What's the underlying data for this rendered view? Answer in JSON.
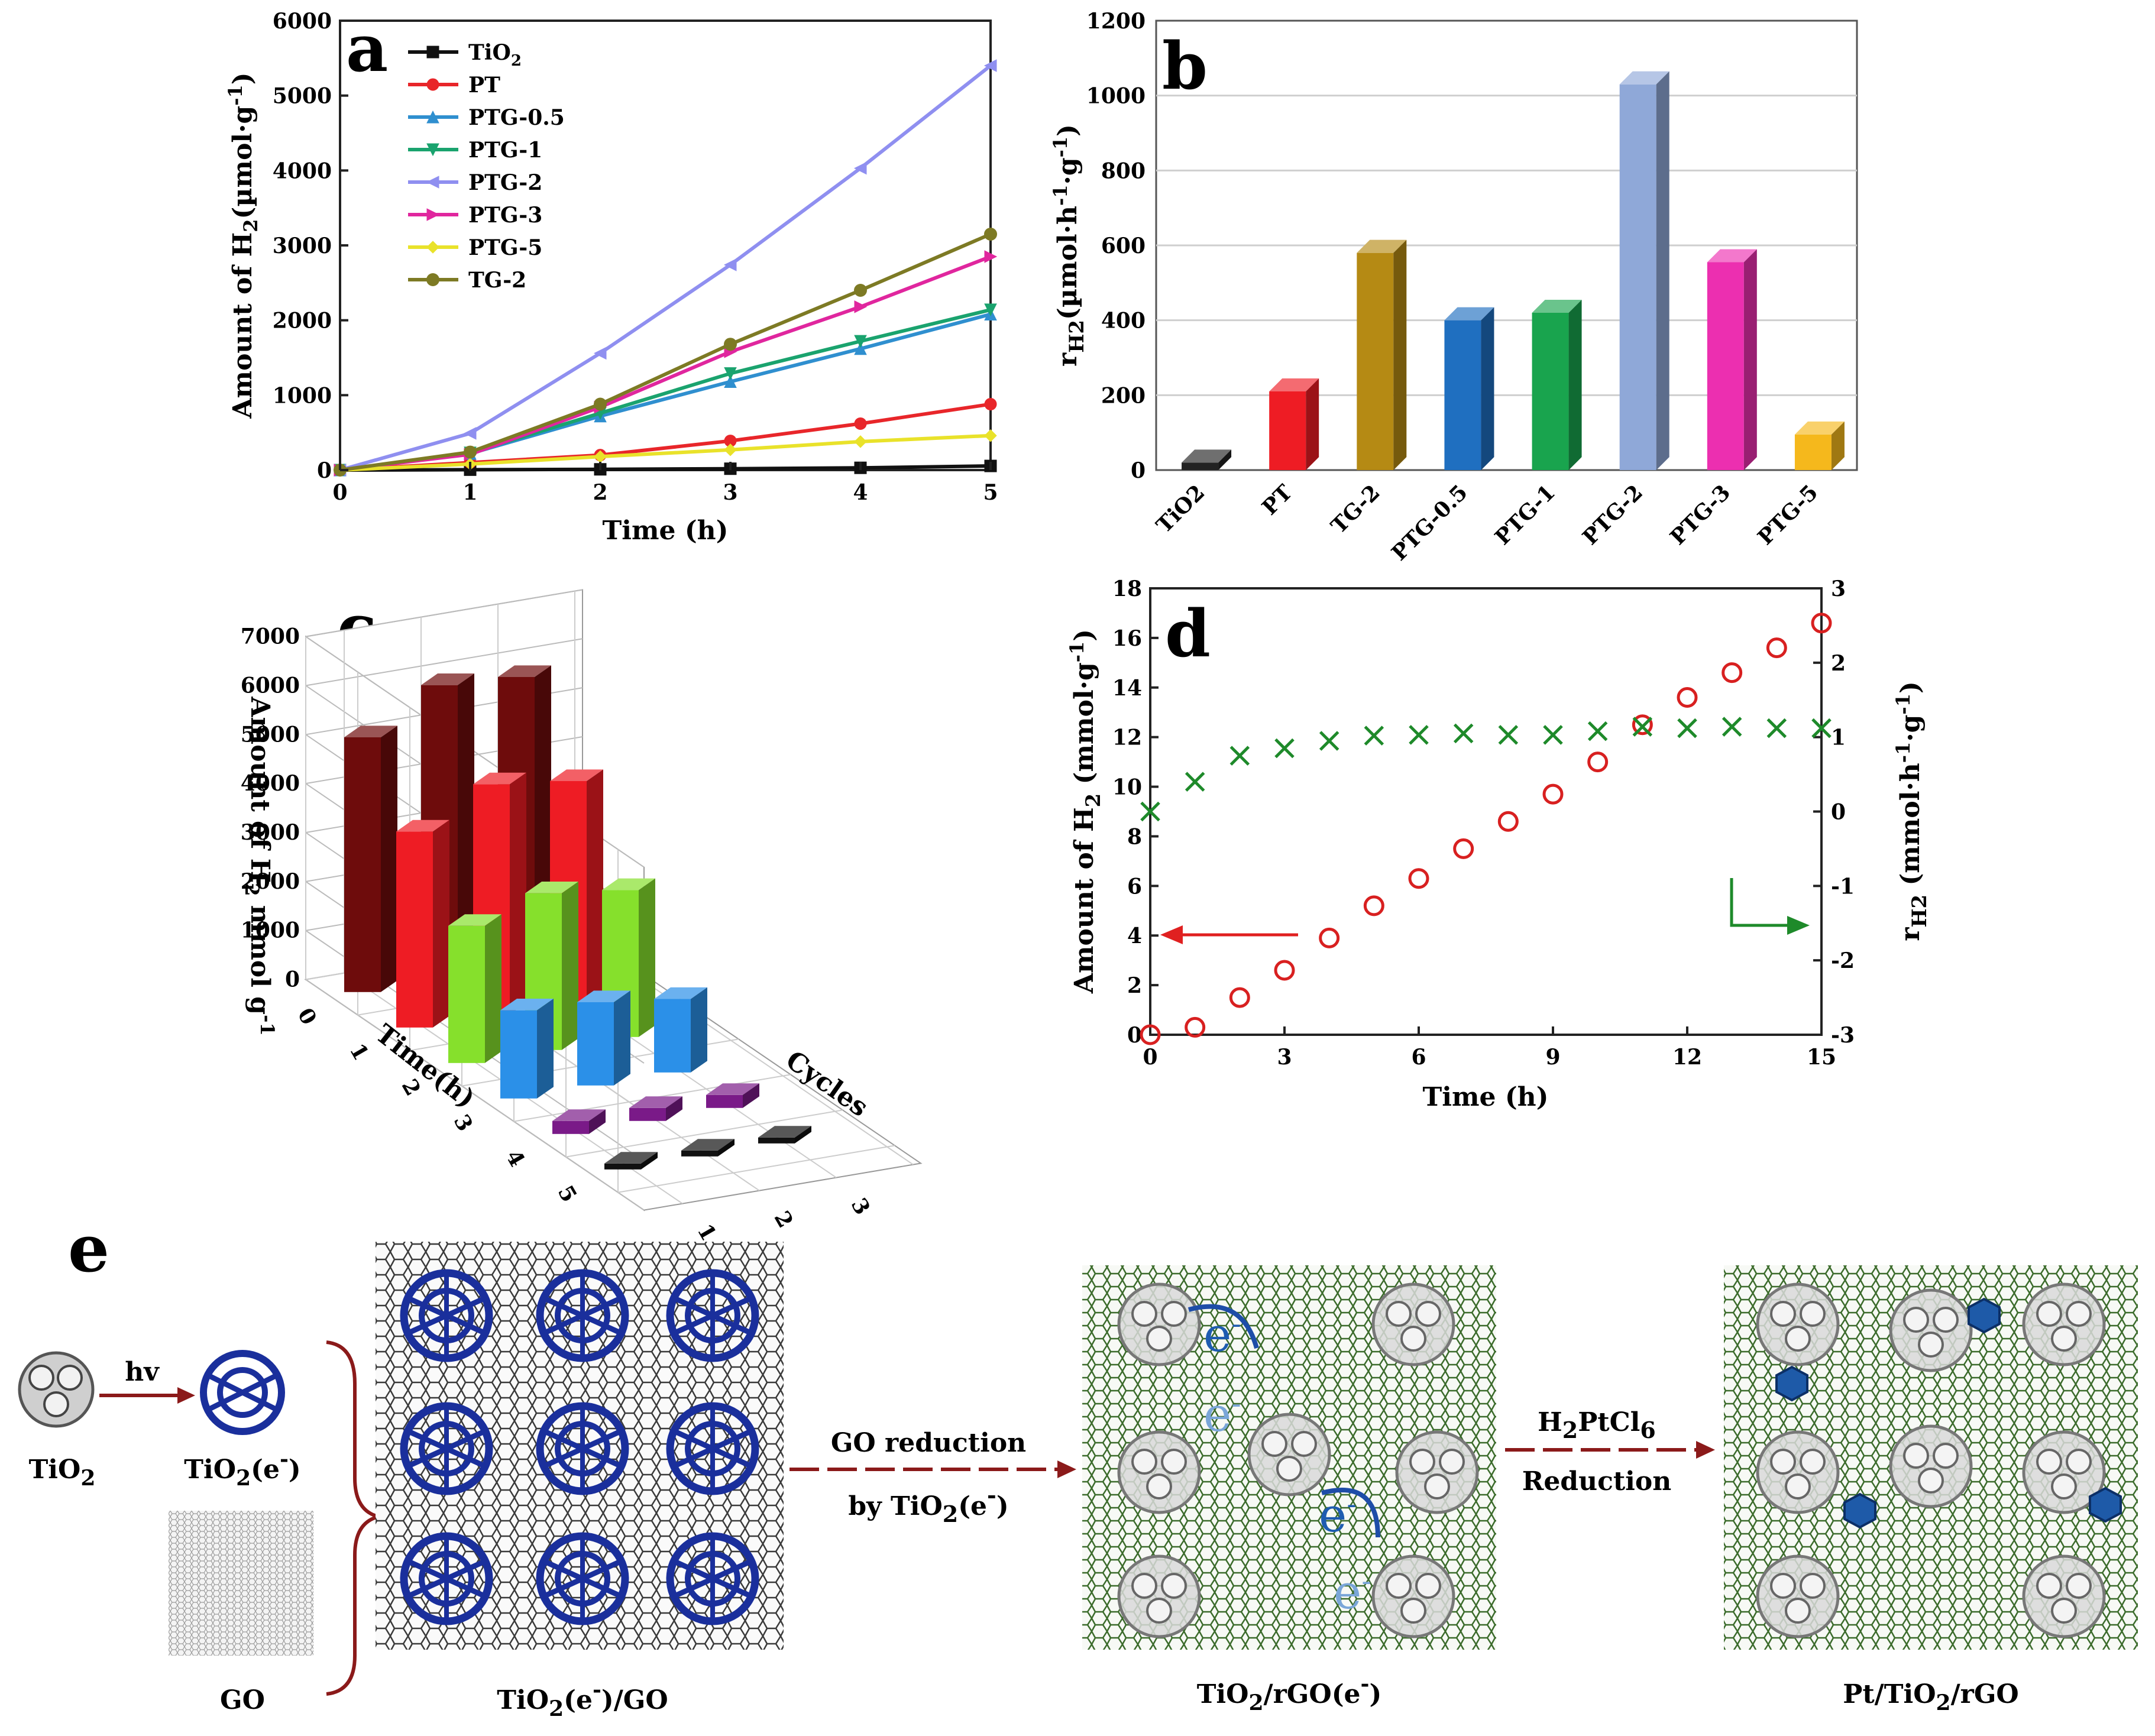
{
  "chart_data": [
    {
      "id": "a",
      "type": "line",
      "panel_label": "a",
      "xlabel": "Time (h)",
      "ylabel": "Amount of H2(µmol·g-1)",
      "ylabel_parts": {
        "pre": "Amount of H",
        "sub": "2",
        "post": "(µmol·g",
        "sup": "-1",
        "end": ")"
      },
      "xlim": [
        0,
        5
      ],
      "ylim": [
        0,
        6000
      ],
      "xticks": [
        "0",
        "1",
        "2",
        "3",
        "4",
        "5"
      ],
      "yticks": [
        "0",
        "1000",
        "2000",
        "3000",
        "4000",
        "5000",
        "6000"
      ],
      "legend_position": "top-left",
      "x": [
        0,
        1,
        2,
        3,
        4,
        5
      ],
      "series": [
        {
          "name": "TiO2",
          "name_base": "TiO",
          "name_sub": "2",
          "color": "#111111",
          "marker": "square",
          "values": [
            0,
            5,
            10,
            18,
            30,
            55
          ]
        },
        {
          "name": "PT",
          "name_base": "PT",
          "name_sub": "",
          "color": "#e8262a",
          "marker": "circle",
          "values": [
            0,
            100,
            200,
            390,
            620,
            880
          ]
        },
        {
          "name": "PTG-0.5",
          "name_base": "PTG-0.5",
          "name_sub": "",
          "color": "#2f8fcf",
          "marker": "triangle-up",
          "values": [
            0,
            220,
            720,
            1180,
            1620,
            2080
          ]
        },
        {
          "name": "PTG-1",
          "name_base": "PTG-1",
          "name_sub": "",
          "color": "#1aa36e",
          "marker": "triangle-down",
          "values": [
            0,
            230,
            760,
            1290,
            1720,
            2140
          ]
        },
        {
          "name": "PTG-2",
          "name_base": "PTG-2",
          "name_sub": "",
          "color": "#8f8ff0",
          "marker": "triangle-left",
          "values": [
            0,
            490,
            1560,
            2740,
            4030,
            5400
          ]
        },
        {
          "name": "PTG-3",
          "name_base": "PTG-3",
          "name_sub": "",
          "color": "#e0269e",
          "marker": "triangle-right",
          "values": [
            0,
            210,
            840,
            1580,
            2180,
            2850
          ]
        },
        {
          "name": "PTG-5",
          "name_base": "PTG-5",
          "name_sub": "",
          "color": "#e9e22a",
          "marker": "diamond",
          "values": [
            0,
            80,
            180,
            270,
            380,
            460
          ]
        },
        {
          "name": "TG-2",
          "name_base": "TG-2",
          "name_sub": "",
          "color": "#7d7a24",
          "marker": "hexagon",
          "values": [
            0,
            240,
            880,
            1680,
            2400,
            3150
          ]
        }
      ]
    },
    {
      "id": "b",
      "type": "bar",
      "panel_label": "b",
      "ylabel": "rH2(µmol·h-1·g-1)",
      "ylabel_parts": {
        "pre": "r",
        "sub": "H2",
        "post": "(µmol·h",
        "sup1": "-1",
        "mid": "·g",
        "sup2": "-1",
        "end": ")"
      },
      "ylim": [
        0,
        1200
      ],
      "yticks": [
        "0",
        "200",
        "400",
        "600",
        "800",
        "1000",
        "1200"
      ],
      "categories": [
        "TiO2",
        "PT",
        "TG-2",
        "PTG-0.5",
        "PTG-1",
        "PTG-2",
        "PTG-3",
        "PTG-5"
      ],
      "values": [
        20,
        210,
        580,
        400,
        420,
        1030,
        555,
        95
      ],
      "colors": [
        "#222222",
        "#ee1c24",
        "#b58a14",
        "#1f6fc0",
        "#19a44e",
        "#8fa8d8",
        "#ec2fb0",
        "#f5b81c"
      ]
    },
    {
      "id": "c",
      "type": "bar",
      "subtype": "3d-bar",
      "panel_label": "c",
      "zlabel": "Amount of H2 mmol g-1",
      "zlabel_parts": {
        "pre": "Amount of H",
        "sub": "2",
        "post": " mmol g",
        "sup": "-1"
      },
      "xlabel": "Time(h)",
      "ylabel": "Cycles",
      "zlim": [
        0,
        7000
      ],
      "zticks": [
        "0",
        "1000",
        "2000",
        "3000",
        "4000",
        "5000",
        "6000",
        "7000"
      ],
      "time_ticks": [
        "0",
        "1",
        "2",
        "3",
        "4",
        "5"
      ],
      "cycle_ticks": [
        "1",
        "2",
        "3"
      ],
      "time_levels": [
        5,
        4,
        3,
        2,
        1,
        0
      ],
      "level_colors": [
        "#6e0c0c",
        "#ee1c24",
        "#86e02c",
        "#2b90e8",
        "#7a1a88",
        "#111111"
      ],
      "cycles": [
        {
          "name": "1",
          "values": [
            5200,
            4000,
            2800,
            1800,
            180,
            0
          ]
        },
        {
          "name": "2",
          "values": [
            6000,
            4700,
            3200,
            1700,
            200,
            0
          ]
        },
        {
          "name": "3",
          "values": [
            5900,
            4500,
            3000,
            1500,
            150,
            0
          ]
        }
      ]
    },
    {
      "id": "d",
      "type": "scatter",
      "panel_label": "d",
      "xlabel": "Time (h)",
      "ylabel_left": "Amount of H2 (mmol·g-1)",
      "ylabel_left_parts": {
        "pre": "Amount of H",
        "sub": "2",
        "post": " (mmol·g",
        "sup": "-1",
        "end": ")"
      },
      "ylabel_right": "rH2 (mmol·h-1·g-1)",
      "ylabel_right_parts": {
        "pre": "r",
        "sub": "H2",
        "post": " (mmol·h",
        "sup1": "-1",
        "mid": "·g",
        "sup2": "-1",
        "end": ")"
      },
      "xlim": [
        0,
        15
      ],
      "ylim_left": [
        0,
        18
      ],
      "ylim_right": [
        -3,
        3
      ],
      "xticks": [
        "0",
        "3",
        "6",
        "9",
        "12",
        "15"
      ],
      "yticks_left": [
        "0",
        "2",
        "4",
        "6",
        "8",
        "10",
        "12",
        "14",
        "16",
        "18"
      ],
      "yticks_right": [
        "-3",
        "-2",
        "-1",
        "0",
        "1",
        "2",
        "3"
      ],
      "x": [
        0,
        1,
        2,
        3,
        4,
        5,
        6,
        7,
        8,
        9,
        10,
        11,
        12,
        13,
        14,
        15
      ],
      "series": [
        {
          "name": "Amount of H2",
          "axis": "left",
          "color": "#d82020",
          "marker": "circle-open",
          "values": [
            0,
            0.3,
            1.5,
            2.6,
            3.9,
            5.2,
            6.3,
            7.5,
            8.6,
            9.7,
            11.0,
            12.5,
            13.6,
            14.6,
            15.6,
            16.6
          ]
        },
        {
          "name": "rH2",
          "axis": "right",
          "color": "#1e8a2a",
          "marker": "x",
          "values": [
            0.0,
            0.4,
            0.75,
            0.85,
            0.95,
            1.02,
            1.03,
            1.05,
            1.03,
            1.03,
            1.08,
            1.14,
            1.12,
            1.14,
            1.12,
            1.12
          ]
        }
      ]
    }
  ],
  "schematic": {
    "panel_label": "e",
    "labels": {
      "tio2": {
        "base": "TiO",
        "sub": "2"
      },
      "hv": "hv",
      "tio2e": {
        "base": "TiO",
        "sub": "2",
        "post": "(e",
        "sup": "-",
        "end": ")"
      },
      "go": "GO",
      "tio2e_go": {
        "base": "TiO",
        "sub": "2",
        "post": "(e",
        "sup": "-",
        "end": ")/GO"
      },
      "step1_top": "GO reduction",
      "step1_bottom": {
        "pre": "by TiO",
        "sub": "2",
        "post": "(e",
        "sup": "-",
        "end": ")"
      },
      "tio2_rgo_e": {
        "base": "TiO",
        "sub": "2",
        "post": "/rGO(e",
        "sup": "-",
        "end": ")"
      },
      "step2_top": {
        "pre": "H",
        "sub1": "2",
        "mid": "PtCl",
        "sub2": "6"
      },
      "step2_bottom": "Reduction",
      "electron": {
        "base": "e",
        "sup": "-"
      },
      "final": {
        "base": "Pt/TiO",
        "sub": "2",
        "post": "/rGO"
      }
    }
  }
}
